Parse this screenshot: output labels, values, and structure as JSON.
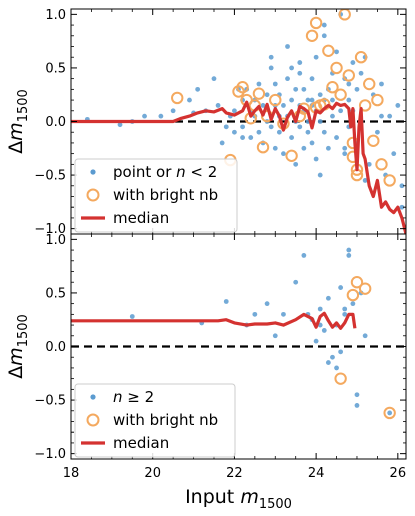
{
  "chart_data": [
    {
      "type": "scatter",
      "panel": "top",
      "ylabel": "Δm",
      "ylabel_sub": "1500",
      "xlim": [
        18,
        26.2
      ],
      "ylim": [
        -1.05,
        1.05
      ],
      "x_ticks": [
        18,
        20,
        22,
        24,
        26
      ],
      "y_ticks": [
        -1.0,
        -0.5,
        0.0,
        0.5,
        1.0
      ],
      "y_tick_labels": [
        "−1.0",
        "−0.5",
        "0.0",
        "0.5",
        "1.0"
      ],
      "reference_line": 0.0,
      "legend": {
        "placement": "lower-left",
        "entries": [
          {
            "kind": "dot",
            "label_prefix": "point or ",
            "label_italic": "n",
            "label_suffix": " < 2"
          },
          {
            "kind": "ring",
            "label": "with bright nb"
          },
          {
            "kind": "line",
            "label": "median"
          }
        ]
      },
      "series": [
        {
          "name": "point or n < 2",
          "x": [
            18.4,
            19.2,
            19.8,
            20.5,
            20.9,
            21.1,
            21.3,
            21.5,
            21.6,
            21.7,
            21.9,
            22.0,
            22.0,
            22.1,
            22.2,
            22.2,
            22.3,
            22.4,
            22.4,
            22.5,
            22.5,
            22.6,
            22.6,
            22.7,
            22.7,
            22.8,
            22.8,
            22.9,
            22.9,
            23.0,
            23.0,
            23.0,
            23.1,
            23.1,
            23.1,
            23.2,
            23.2,
            23.3,
            23.3,
            23.4,
            23.4,
            23.4,
            23.5,
            23.5,
            23.5,
            23.6,
            23.6,
            23.6,
            23.7,
            23.7,
            23.7,
            23.8,
            23.8,
            23.8,
            23.9,
            23.9,
            23.9,
            24.0,
            24.0,
            24.0,
            24.1,
            24.1,
            24.2,
            24.2,
            24.2,
            24.3,
            24.3,
            24.4,
            24.4,
            24.4,
            24.5,
            24.5,
            24.6,
            24.6,
            24.7,
            24.7,
            24.8,
            24.8,
            24.9,
            24.9,
            25.0,
            25.0,
            25.1,
            25.1,
            25.2,
            25.3,
            25.4,
            25.5,
            25.6,
            25.7,
            25.8,
            25.9,
            26.0,
            26.1,
            26.1,
            22.9,
            23.3,
            23.9,
            24.2,
            24.8,
            25.2,
            25.6,
            24.7,
            24.1,
            23.6,
            22.2,
            21.0,
            20.2,
            19.5,
            21.8
          ],
          "y": [
            0.02,
            -0.03,
            0.05,
            0.1,
            0.2,
            0.3,
            0.1,
            0.4,
            0.15,
            -0.2,
            0.05,
            0.1,
            -0.1,
            0.3,
            0.2,
            -0.05,
            0.3,
            0.1,
            -0.15,
            0.05,
            0.2,
            -0.1,
            0.35,
            0.15,
            -0.2,
            0.25,
            0.0,
            0.5,
            -0.05,
            0.15,
            -0.25,
            0.35,
            0.05,
            -0.1,
            0.25,
            0.15,
            -0.3,
            0.05,
            0.4,
            0.2,
            -0.15,
            0.5,
            0.0,
            0.3,
            -0.4,
            0.15,
            -0.05,
            0.55,
            0.1,
            -0.25,
            0.3,
            0.0,
            0.2,
            -0.1,
            0.4,
            -0.2,
            0.15,
            0.6,
            0.1,
            -0.35,
            0.25,
            0.0,
            0.8,
            0.2,
            -0.1,
            0.3,
            -0.25,
            0.45,
            0.05,
            0.2,
            0.65,
            -0.15,
            1.0,
            0.1,
            0.4,
            -0.3,
            0.2,
            -0.05,
            0.55,
            0.1,
            0.3,
            -0.2,
            0.45,
            0.0,
            0.6,
            -0.4,
            0.25,
            -0.1,
            0.35,
            -0.5,
            0.05,
            -0.3,
            0.15,
            -0.6,
            -0.8,
            0.6,
            0.7,
            0.2,
            0.9,
            0.35,
            -0.55,
            0.05,
            -0.25,
            -0.5,
            0.45,
            -0.15,
            0.08,
            0.05,
            0.0,
            -0.05
          ]
        },
        {
          "name": "with bright nb",
          "x": [
            20.6,
            21.9,
            22.1,
            22.2,
            22.3,
            22.4,
            22.5,
            22.6,
            22.7,
            22.8,
            23.0,
            23.2,
            23.4,
            23.6,
            23.7,
            23.9,
            24.0,
            24.0,
            24.1,
            24.3,
            24.4,
            24.5,
            24.6,
            24.7,
            24.8,
            24.9,
            25.0,
            25.0,
            25.1,
            25.2,
            25.3,
            25.4,
            25.5,
            25.6,
            25.8,
            24.2,
            24.9
          ],
          "y": [
            0.22,
            -0.36,
            0.28,
            0.32,
            0.2,
            0.03,
            0.15,
            0.26,
            -0.24,
            0.05,
            0.2,
            -0.02,
            -0.32,
            0.05,
            0.12,
            0.8,
            0.13,
            0.92,
            0.15,
            0.66,
            0.32,
            0.5,
            0.25,
            1.0,
            0.43,
            -0.33,
            -0.45,
            -0.5,
            0.6,
            0.15,
            0.35,
            -0.18,
            0.2,
            -0.4,
            -0.55,
            0.16,
            -0.2
          ]
        },
        {
          "name": "median",
          "x": [
            18.0,
            19.0,
            20.0,
            20.5,
            20.7,
            20.9,
            21.1,
            21.3,
            21.5,
            21.7,
            21.8,
            22.0,
            22.2,
            22.3,
            22.4,
            22.5,
            22.6,
            22.7,
            22.8,
            22.9,
            23.0,
            23.1,
            23.2,
            23.3,
            23.4,
            23.5,
            23.6,
            23.7,
            23.8,
            23.9,
            24.0,
            24.1,
            24.2,
            24.3,
            24.4,
            24.5,
            24.6,
            24.7,
            24.8,
            24.85,
            24.9,
            24.95,
            25.0,
            25.05,
            25.1,
            25.15,
            25.2,
            25.3,
            25.4,
            25.5,
            25.6,
            25.7,
            25.8,
            25.9,
            26.0,
            26.1,
            26.2
          ],
          "y": [
            0.0,
            0.0,
            0.0,
            0.0,
            0.03,
            0.05,
            0.08,
            0.1,
            0.09,
            0.12,
            0.08,
            0.06,
            0.1,
            0.18,
            0.05,
            0.1,
            0.14,
            0.06,
            0.16,
            0.02,
            0.12,
            0.05,
            -0.08,
            0.04,
            0.1,
            0.0,
            0.14,
            0.12,
            0.09,
            -0.06,
            0.1,
            0.08,
            0.12,
            0.15,
            0.12,
            0.17,
            0.15,
            0.16,
            0.12,
            -0.05,
            0.12,
            -0.2,
            -0.45,
            -0.05,
            0.12,
            -0.3,
            -0.35,
            -0.6,
            -0.7,
            -0.55,
            -0.8,
            -0.75,
            -0.82,
            -0.85,
            -0.8,
            -0.9,
            -1.05
          ]
        }
      ]
    },
    {
      "type": "scatter",
      "panel": "bottom",
      "xlabel": "Input m",
      "xlabel_sub": "1500",
      "ylabel": "Δm",
      "ylabel_sub": "1500",
      "xlim": [
        18,
        26.2
      ],
      "ylim": [
        -1.05,
        1.05
      ],
      "x_ticks": [
        18,
        20,
        22,
        24,
        26
      ],
      "x_tick_labels": [
        "18",
        "20",
        "22",
        "24",
        "26"
      ],
      "y_ticks": [
        -1.0,
        -0.5,
        0.0,
        0.5,
        1.0
      ],
      "y_tick_labels": [
        "−1.0",
        "−0.5",
        "0.0",
        "0.5",
        "1.0"
      ],
      "reference_line": 0.0,
      "legend": {
        "placement": "lower-left",
        "entries": [
          {
            "kind": "dot",
            "label_prefix": "",
            "label_italic": "n",
            "label_suffix": " ≥ 2"
          },
          {
            "kind": "ring",
            "label": "with bright nb"
          },
          {
            "kind": "line",
            "label": "median"
          }
        ]
      },
      "series": [
        {
          "name": "n ≥ 2",
          "x": [
            19.5,
            21.2,
            21.8,
            22.3,
            22.5,
            22.8,
            23.0,
            23.2,
            23.5,
            23.7,
            23.9,
            24.0,
            24.1,
            24.2,
            24.3,
            24.4,
            24.5,
            24.6,
            24.7,
            24.8,
            24.9,
            25.0,
            25.1,
            25.2,
            24.3,
            24.5,
            24.7,
            25.0,
            23.8,
            24.1,
            24.8,
            24.6,
            25.8
          ],
          "y": [
            0.28,
            0.22,
            0.42,
            0.2,
            0.3,
            0.4,
            0.1,
            0.3,
            0.6,
            0.85,
            0.25,
            0.05,
            0.35,
            0.15,
            0.45,
            -0.1,
            0.2,
            0.55,
            0.3,
            0.85,
            0.4,
            -0.45,
            0.5,
            0.1,
            -0.15,
            -0.2,
            0.35,
            -0.55,
            0.3,
            0.2,
            0.9,
            -0.05,
            -0.62
          ]
        },
        {
          "name": "with bright nb",
          "x": [
            24.6,
            24.9,
            25.0,
            25.2,
            25.8
          ],
          "y": [
            -0.3,
            0.48,
            0.6,
            0.54,
            -0.62
          ]
        },
        {
          "name": "median",
          "x": [
            18.0,
            19.0,
            20.0,
            21.0,
            21.5,
            21.6,
            21.8,
            22.0,
            22.3,
            22.5,
            22.8,
            23.0,
            23.2,
            23.5,
            23.7,
            23.9,
            24.0,
            24.1,
            24.2,
            24.3,
            24.4,
            24.5,
            24.6,
            24.7,
            24.8,
            24.9,
            24.95
          ],
          "y": [
            0.24,
            0.24,
            0.24,
            0.24,
            0.24,
            0.24,
            0.25,
            0.22,
            0.2,
            0.21,
            0.21,
            0.22,
            0.2,
            0.25,
            0.3,
            0.26,
            0.18,
            0.28,
            0.31,
            0.24,
            0.18,
            0.22,
            0.17,
            0.22,
            0.3,
            0.3,
            0.17
          ]
        }
      ]
    }
  ]
}
